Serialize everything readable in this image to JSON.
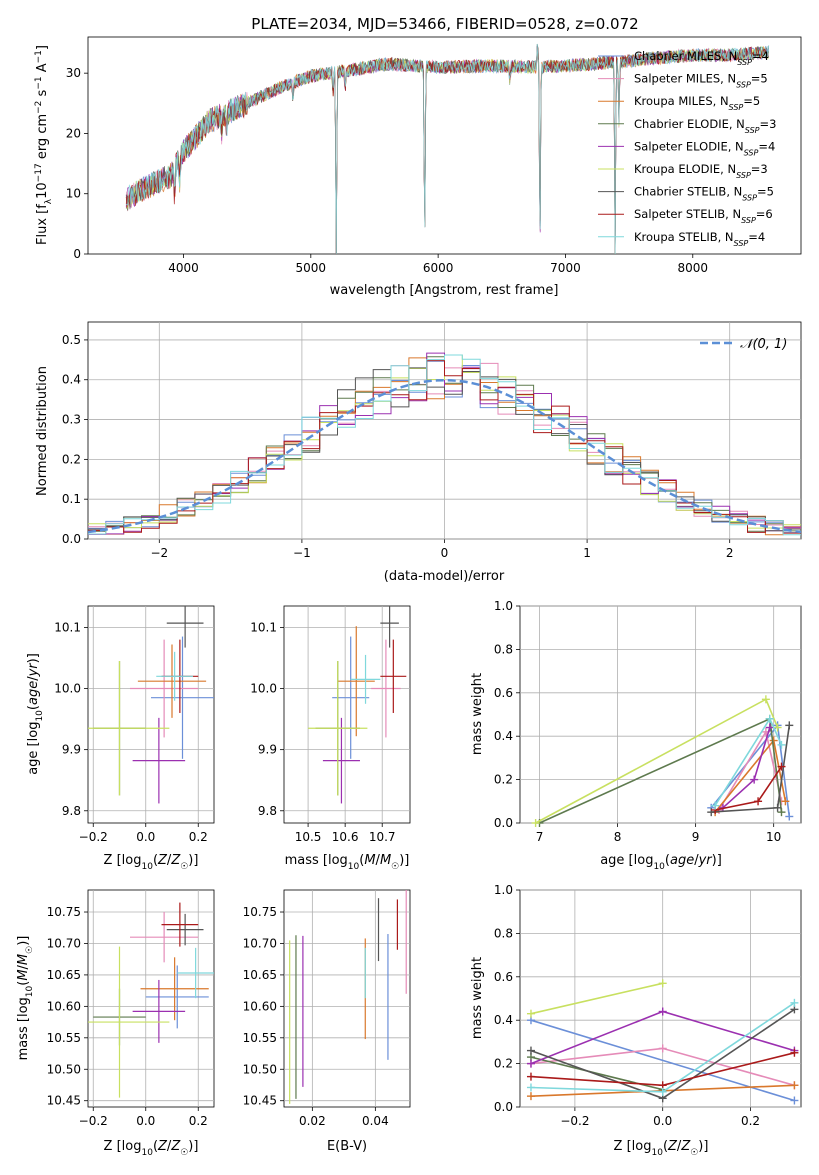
{
  "figure_title": "PLATE=2034, MJD=53466, FIBERID=0528, z=0.072",
  "colors": {
    "Chabrier MILES": "#6b8fd8",
    "Salpeter MILES": "#e58bb8",
    "Kroupa MILES": "#d9782c",
    "Chabrier ELODIE": "#5e7a4e",
    "Salpeter ELODIE": "#9b30b0",
    "Kroupa ELODIE": "#c8e060",
    "Chabrier STELIB": "#555555",
    "Salpeter STELIB": "#aa1a1a",
    "Kroupa STELIB": "#7fd8dc",
    "normal": "#5b8fd6"
  },
  "chart_data": [
    {
      "id": "spectrum",
      "type": "line",
      "title": "PLATE=2034, MJD=53466, FIBERID=0528, z=0.072",
      "xlabel": "wavelength [Angstrom, rest frame]",
      "ylabel": "Flux [fλ10⁻¹⁷ erg cm⁻² s⁻¹ A⁻¹]",
      "xlim": [
        3250,
        8850
      ],
      "ylim": [
        0,
        36
      ],
      "xticks": [
        4000,
        5000,
        6000,
        7000,
        8000
      ],
      "yticks": [
        0,
        10,
        20,
        30
      ],
      "grid": false,
      "legend_position": "right",
      "continuum": [
        [
          3550,
          9
        ],
        [
          3700,
          11
        ],
        [
          3900,
          13
        ],
        [
          4000,
          17
        ],
        [
          4200,
          22
        ],
        [
          4500,
          25
        ],
        [
          4800,
          28
        ],
        [
          5000,
          29.5
        ],
        [
          5300,
          30.5
        ],
        [
          5600,
          31.5
        ],
        [
          6000,
          31
        ],
        [
          6400,
          31.2
        ],
        [
          6800,
          31
        ],
        [
          7200,
          31.5
        ],
        [
          7500,
          32
        ],
        [
          7700,
          32.5
        ],
        [
          8000,
          33
        ],
        [
          8300,
          33
        ],
        [
          8600,
          33.5
        ]
      ],
      "features": [
        [
          3930,
          -5
        ],
        [
          3970,
          -4
        ],
        [
          4300,
          -3
        ],
        [
          4340,
          -3
        ],
        [
          4860,
          -3
        ],
        [
          5175,
          -4
        ],
        [
          5200,
          -32
        ],
        [
          5270,
          -3
        ],
        [
          5890,
          -5
        ],
        [
          5895,
          -27
        ],
        [
          6563,
          -3
        ],
        [
          6780,
          4
        ],
        [
          6800,
          -34
        ],
        [
          7390,
          -32
        ],
        [
          7420,
          -10
        ]
      ],
      "series": [
        {
          "name": "Chabrier MILES, N_SSP=4",
          "label_main": "Chabrier MILES, N",
          "label_sub": "SSP",
          "label_tail": "=4"
        },
        {
          "name": "Salpeter MILES, N_SSP=5",
          "label_main": "Salpeter MILES, N",
          "label_sub": "SSP",
          "label_tail": "=5"
        },
        {
          "name": "Kroupa MILES, N_SSP=5",
          "label_main": "Kroupa MILES, N",
          "label_sub": "SSP",
          "label_tail": "=5"
        },
        {
          "name": "Chabrier ELODIE, N_SSP=3",
          "label_main": "Chabrier ELODIE, N",
          "label_sub": "SSP",
          "label_tail": "=3"
        },
        {
          "name": "Salpeter ELODIE, N_SSP=4",
          "label_main": "Salpeter ELODIE, N",
          "label_sub": "SSP",
          "label_tail": "=4"
        },
        {
          "name": "Kroupa ELODIE, N_SSP=3",
          "label_main": "Kroupa ELODIE, N",
          "label_sub": "SSP",
          "label_tail": "=3"
        },
        {
          "name": "Chabrier STELIB, N_SSP=5",
          "label_main": "Chabrier STELIB, N",
          "label_sub": "SSP",
          "label_tail": "=5"
        },
        {
          "name": "Salpeter STELIB, N_SSP=6",
          "label_main": "Salpeter STELIB, N",
          "label_sub": "SSP",
          "label_tail": "=6"
        },
        {
          "name": "Kroupa STELIB, N_SSP=4",
          "label_main": "Kroupa STELIB, N",
          "label_sub": "SSP",
          "label_tail": "=4"
        }
      ]
    },
    {
      "id": "residuals",
      "type": "line",
      "xlabel": "(data-model)/error",
      "ylabel": "Normed distribution",
      "xlim": [
        -2.5,
        2.5
      ],
      "ylim": [
        0,
        0.545
      ],
      "xticks": [
        -2,
        -1,
        0,
        1,
        2
      ],
      "yticks": [
        0.0,
        0.1,
        0.2,
        0.3,
        0.4,
        0.5
      ],
      "grid": true,
      "legend_position": "top-right",
      "legend_label": "𝒩(0, 1)",
      "bin_edges": [
        -2.5,
        -2.375,
        -2.25,
        -2.125,
        -2.0,
        -1.875,
        -1.75,
        -1.625,
        -1.5,
        -1.375,
        -1.25,
        -1.125,
        -1.0,
        -0.875,
        -0.75,
        -0.625,
        -0.5,
        -0.375,
        -0.25,
        -0.125,
        0.0,
        0.125,
        0.25,
        0.375,
        0.5,
        0.625,
        0.75,
        0.875,
        1.0,
        1.125,
        1.25,
        1.375,
        1.5,
        1.625,
        1.75,
        1.875,
        2.0,
        2.125,
        2.25,
        2.375,
        2.5
      ],
      "normal_curve": {
        "mean": 0,
        "sigma": 1,
        "style": "dashed"
      },
      "histogram_scatter": 0.055
    },
    {
      "id": "age-vs-Z",
      "type": "scatter",
      "xlabel": "Z [log₁₀(Z/Z☉)]",
      "ylabel": "age [log₁₀(age/yr)]",
      "xlim": [
        -0.22,
        0.26
      ],
      "ylim": [
        9.78,
        10.135
      ],
      "xticks": [
        -0.2,
        0.0,
        0.2
      ],
      "yticks": [
        9.8,
        9.9,
        10.0,
        10.1
      ],
      "grid": true,
      "points": [
        {
          "series": "Chabrier MILES",
          "x": 0.14,
          "xerr": 0.12,
          "y": 9.985,
          "yerr": 0.1
        },
        {
          "series": "Salpeter MILES",
          "x": 0.07,
          "xerr": 0.13,
          "y": 10.0,
          "yerr": 0.08
        },
        {
          "series": "Kroupa MILES",
          "x": 0.1,
          "xerr": 0.13,
          "y": 10.012,
          "yerr": 0.06
        },
        {
          "series": "Chabrier ELODIE",
          "x": -0.1,
          "xerr": 0.1,
          "y": 9.935,
          "yerr": 0.11
        },
        {
          "series": "Salpeter ELODIE",
          "x": 0.05,
          "xerr": 0.1,
          "y": 9.882,
          "yerr": 0.07
        },
        {
          "series": "Kroupa ELODIE",
          "x": -0.1,
          "xerr": 0.19,
          "y": 9.935,
          "yerr": 0.11
        },
        {
          "series": "Chabrier STELIB",
          "x": 0.15,
          "xerr": 0.07,
          "y": 10.107,
          "yerr": 0.04
        },
        {
          "series": "Salpeter STELIB",
          "x": 0.13,
          "xerr": 0.07,
          "y": 10.02,
          "yerr": 0.06
        },
        {
          "series": "Kroupa STELIB",
          "x": 0.11,
          "xerr": 0.07,
          "y": 10.02,
          "yerr": 0.04
        }
      ]
    },
    {
      "id": "age-vs-mass",
      "type": "scatter",
      "xlabel": "mass [log₁₀(M/M☉)]",
      "ylabel": "",
      "xlim": [
        10.435,
        10.775
      ],
      "ylim": [
        9.78,
        10.135
      ],
      "xticks": [
        10.5,
        10.6,
        10.7
      ],
      "yticks": [
        9.8,
        9.9,
        10.0,
        10.1
      ],
      "grid": true,
      "points": [
        {
          "series": "Chabrier MILES",
          "x": 10.615,
          "xerr": 0.05,
          "y": 9.985,
          "yerr": 0.1
        },
        {
          "series": "Salpeter MILES",
          "x": 10.71,
          "xerr": 0.04,
          "y": 10.0,
          "yerr": 0.08
        },
        {
          "series": "Kroupa MILES",
          "x": 10.63,
          "xerr": 0.05,
          "y": 10.012,
          "yerr": 0.09
        },
        {
          "series": "Chabrier ELODIE",
          "x": 10.58,
          "xerr": 0.06,
          "y": 9.935,
          "yerr": 0.11
        },
        {
          "series": "Salpeter ELODIE",
          "x": 10.59,
          "xerr": 0.05,
          "y": 9.882,
          "yerr": 0.07
        },
        {
          "series": "Kroupa ELODIE",
          "x": 10.58,
          "xerr": 0.08,
          "y": 9.935,
          "yerr": 0.11
        },
        {
          "series": "Chabrier STELIB",
          "x": 10.72,
          "xerr": 0.025,
          "y": 10.107,
          "yerr": 0.04
        },
        {
          "series": "Salpeter STELIB",
          "x": 10.73,
          "xerr": 0.035,
          "y": 10.02,
          "yerr": 0.06
        },
        {
          "series": "Kroupa STELIB",
          "x": 10.655,
          "xerr": 0.04,
          "y": 10.015,
          "yerr": 0.04
        }
      ]
    },
    {
      "id": "weight-vs-age",
      "type": "line",
      "xlabel": "age [log₁₀(age/yr)]",
      "ylabel": "mass weight",
      "xlim": [
        6.75,
        10.35
      ],
      "ylim": [
        0,
        1
      ],
      "xticks": [
        7,
        8,
        9,
        10
      ],
      "yticks": [
        0.0,
        0.2,
        0.4,
        0.6,
        0.8,
        1.0
      ],
      "grid": true,
      "series": [
        {
          "name": "Chabrier MILES",
          "x": [
            9.2,
            10.05,
            10.2
          ],
          "y": [
            0.07,
            0.45,
            0.03
          ]
        },
        {
          "name": "Salpeter MILES",
          "x": [
            9.3,
            9.9,
            10.1
          ],
          "y": [
            0.06,
            0.42,
            0.1
          ]
        },
        {
          "name": "Kroupa MILES",
          "x": [
            9.25,
            10.0,
            10.15
          ],
          "y": [
            0.05,
            0.38,
            0.1
          ]
        },
        {
          "name": "Chabrier ELODIE",
          "x": [
            7.0,
            9.95,
            10.1
          ],
          "y": [
            0.0,
            0.48,
            0.05
          ]
        },
        {
          "name": "Salpeter ELODIE",
          "x": [
            9.35,
            9.75,
            9.95
          ],
          "y": [
            0.07,
            0.2,
            0.44
          ]
        },
        {
          "name": "Kroupa ELODIE",
          "x": [
            6.95,
            9.9,
            10.05
          ],
          "y": [
            0.0,
            0.57,
            0.44
          ]
        },
        {
          "name": "Chabrier STELIB",
          "x": [
            9.2,
            10.05,
            10.2
          ],
          "y": [
            0.05,
            0.07,
            0.45
          ]
        },
        {
          "name": "Salpeter STELIB",
          "x": [
            9.25,
            9.8,
            10.1
          ],
          "y": [
            0.06,
            0.1,
            0.26
          ]
        },
        {
          "name": "Kroupa STELIB",
          "x": [
            9.25,
            9.95,
            10.1
          ],
          "y": [
            0.08,
            0.48,
            0.36
          ]
        }
      ]
    },
    {
      "id": "mass-vs-Z",
      "type": "scatter",
      "xlabel": "Z [log₁₀(Z/Z☉)]",
      "ylabel": "mass [log₁₀(M/M☉)]",
      "xlim": [
        -0.22,
        0.26
      ],
      "ylim": [
        10.44,
        10.785
      ],
      "xticks": [
        -0.2,
        0.0,
        0.2
      ],
      "yticks": [
        10.45,
        10.5,
        10.55,
        10.6,
        10.65,
        10.7,
        10.75
      ],
      "grid": true,
      "points": [
        {
          "series": "Chabrier MILES",
          "x": 0.12,
          "xerr": 0.12,
          "y": 10.615,
          "yerr": 0.05
        },
        {
          "series": "Salpeter MILES",
          "x": 0.07,
          "xerr": 0.13,
          "y": 10.71,
          "yerr": 0.04
        },
        {
          "series": "Kroupa MILES",
          "x": 0.11,
          "xerr": 0.13,
          "y": 10.628,
          "yerr": 0.05
        },
        {
          "series": "Chabrier ELODIE",
          "x": -0.1,
          "xerr": 0.1,
          "y": 10.583,
          "yerr": 0.045
        },
        {
          "series": "Salpeter ELODIE",
          "x": 0.05,
          "xerr": 0.1,
          "y": 10.592,
          "yerr": 0.05
        },
        {
          "series": "Kroupa ELODIE",
          "x": -0.1,
          "xerr": 0.19,
          "y": 10.575,
          "yerr": 0.12
        },
        {
          "series": "Chabrier STELIB",
          "x": 0.15,
          "xerr": 0.07,
          "y": 10.722,
          "yerr": 0.025
        },
        {
          "series": "Salpeter STELIB",
          "x": 0.13,
          "xerr": 0.07,
          "y": 10.73,
          "yerr": 0.035
        },
        {
          "series": "Kroupa STELIB",
          "x": 0.19,
          "xerr": 0.07,
          "y": 10.653,
          "yerr": 0.04
        }
      ]
    },
    {
      "id": "mass-vs-EBV",
      "type": "scatter",
      "xlabel": "E(B-V)",
      "ylabel": "",
      "xlim": [
        0.011,
        0.051
      ],
      "ylim": [
        10.44,
        10.785
      ],
      "xticks": [
        0.02,
        0.04
      ],
      "yticks": [
        10.45,
        10.5,
        10.55,
        10.6,
        10.65,
        10.7,
        10.75
      ],
      "grid": true,
      "points": [
        {
          "series": "Chabrier MILES",
          "x": 0.044,
          "y": 10.615,
          "yerr": 0.1
        },
        {
          "series": "Salpeter MILES",
          "x": 0.0498,
          "y": 10.71,
          "yerr": 0.09
        },
        {
          "series": "Kroupa MILES",
          "x": 0.0368,
          "y": 10.628,
          "yerr": 0.08
        },
        {
          "series": "Chabrier ELODIE",
          "x": 0.0148,
          "y": 10.583,
          "yerr": 0.13
        },
        {
          "series": "Salpeter ELODIE",
          "x": 0.017,
          "y": 10.592,
          "yerr": 0.12
        },
        {
          "series": "Kroupa ELODIE",
          "x": 0.0128,
          "y": 10.575,
          "yerr": 0.13
        },
        {
          "series": "Chabrier STELIB",
          "x": 0.041,
          "y": 10.722,
          "yerr": 0.05
        },
        {
          "series": "Salpeter STELIB",
          "x": 0.047,
          "y": 10.73,
          "yerr": 0.04
        },
        {
          "series": "Kroupa STELIB",
          "x": 0.0368,
          "y": 10.653,
          "yerr": 0.04
        }
      ]
    },
    {
      "id": "weight-vs-Z",
      "type": "line",
      "xlabel": "Z [log₁₀(Z/Z☉)]",
      "ylabel": "mass weight",
      "xlim": [
        -0.325,
        0.315
      ],
      "ylim": [
        0,
        1
      ],
      "xticks": [
        -0.2,
        0.0,
        0.2
      ],
      "yticks": [
        0.0,
        0.2,
        0.4,
        0.6,
        0.8,
        1.0
      ],
      "grid": true,
      "series": [
        {
          "name": "Chabrier MILES",
          "x": [
            -0.3,
            0.3
          ],
          "y": [
            0.4,
            0.03
          ]
        },
        {
          "name": "Salpeter MILES",
          "x": [
            -0.3,
            0.0,
            0.3
          ],
          "y": [
            0.2,
            0.27,
            0.1
          ]
        },
        {
          "name": "Kroupa MILES",
          "x": [
            -0.3,
            0.3
          ],
          "y": [
            0.05,
            0.1
          ]
        },
        {
          "name": "Chabrier ELODIE",
          "x": [
            -0.3,
            0.0
          ],
          "y": [
            0.23,
            0.08
          ]
        },
        {
          "name": "Salpeter ELODIE",
          "x": [
            -0.3,
            0.0,
            0.3
          ],
          "y": [
            0.2,
            0.44,
            0.26
          ]
        },
        {
          "name": "Kroupa ELODIE",
          "x": [
            -0.3,
            0.0
          ],
          "y": [
            0.43,
            0.57
          ]
        },
        {
          "name": "Chabrier STELIB",
          "x": [
            -0.3,
            0.0,
            0.3
          ],
          "y": [
            0.26,
            0.04,
            0.45
          ]
        },
        {
          "name": "Salpeter STELIB",
          "x": [
            -0.3,
            0.0,
            0.3
          ],
          "y": [
            0.14,
            0.1,
            0.25
          ]
        },
        {
          "name": "Kroupa STELIB",
          "x": [
            -0.3,
            0.0,
            0.3
          ],
          "y": [
            0.09,
            0.07,
            0.48
          ]
        }
      ]
    }
  ]
}
